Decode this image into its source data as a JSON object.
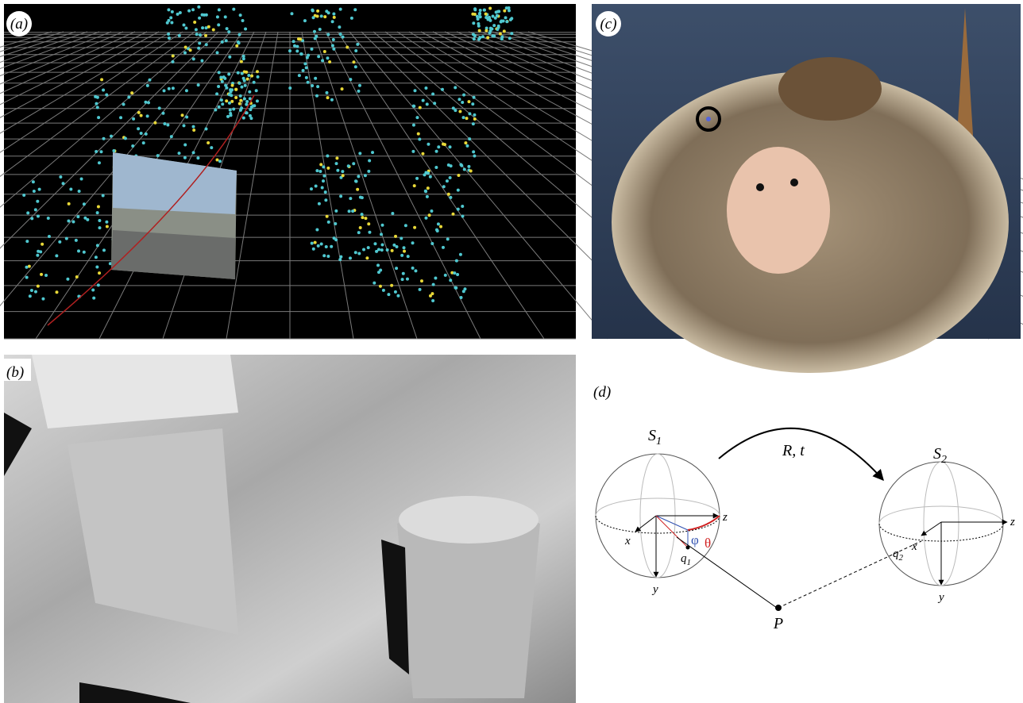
{
  "panels": {
    "a": {
      "label": "(a)"
    },
    "b": {
      "label": "(b)"
    },
    "c": {
      "label": "(c)"
    },
    "d": {
      "label": "(d)"
    }
  },
  "diagram": {
    "sphere1": {
      "main": "S",
      "sub": "1"
    },
    "sphere2": {
      "main": "S",
      "sub": "2"
    },
    "motion": "R, t",
    "axes1": {
      "x": "x",
      "y": "y",
      "z": "z"
    },
    "axes2": {
      "x": "x",
      "y": "y",
      "z": "z"
    },
    "theta": "θ",
    "phi": "φ",
    "q1": {
      "main": "q",
      "sub": "1"
    },
    "q2": {
      "main": "q",
      "sub": "2"
    },
    "point": "P"
  }
}
